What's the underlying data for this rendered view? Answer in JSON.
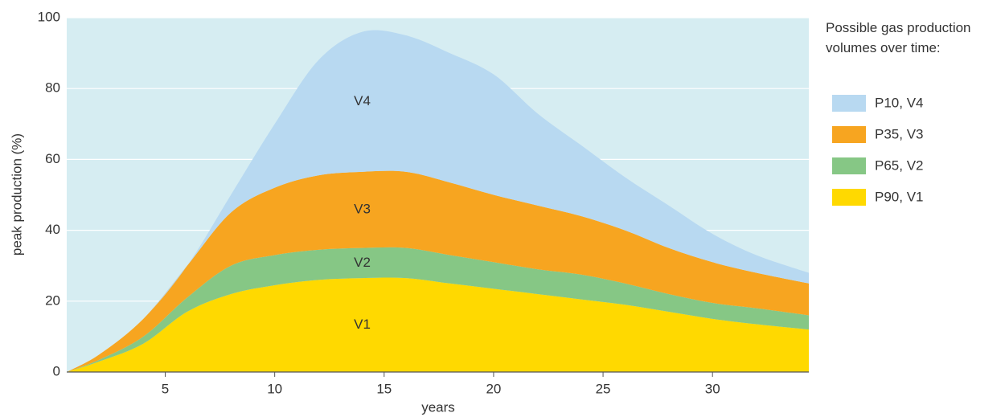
{
  "chart_data": {
    "type": "stacked_area",
    "xlabel": "years",
    "ylabel": "peak production (%)",
    "legend_title": "Possible gas production volumes over time:",
    "x": [
      0.5,
      2,
      4,
      6,
      8,
      10,
      12,
      14,
      16,
      18,
      20,
      22,
      24,
      26,
      28,
      30,
      32,
      34.4
    ],
    "series": [
      {
        "name": "P90, V1",
        "label": "V1",
        "color": "#ffd900",
        "values": [
          0,
          3,
          8,
          17,
          22,
          24.5,
          26,
          26.5,
          26.5,
          25,
          23.5,
          22,
          20.5,
          19,
          17,
          15,
          13.5,
          12
        ]
      },
      {
        "name": "P65, V2",
        "label": "V2",
        "color": "#86c785",
        "values": [
          0,
          0.5,
          2,
          4,
          8,
          8.5,
          8.5,
          8.5,
          8.5,
          8,
          7.5,
          7,
          7,
          6,
          5,
          4.5,
          4.5,
          4
        ]
      },
      {
        "name": "P35, V3",
        "label": "V3",
        "color": "#f7a520",
        "values": [
          0,
          1.5,
          5,
          9,
          15,
          19,
          21,
          21.5,
          21.5,
          20.5,
          19,
          18,
          16.5,
          15,
          13,
          11.5,
          10,
          9
        ]
      },
      {
        "name": "P10, V4",
        "label": "V4",
        "color": "#b8d9f1",
        "values": [
          0,
          0,
          0,
          0,
          5,
          18,
          32.5,
          39.5,
          38.5,
          36.5,
          34,
          26,
          20,
          15,
          12,
          8,
          5,
          3
        ]
      }
    ],
    "xlim": [
      0.5,
      34.4
    ],
    "ylim": [
      0,
      100
    ],
    "xticks": [
      5,
      10,
      15,
      20,
      25,
      30
    ],
    "yticks": [
      0,
      20,
      40,
      60,
      80,
      100
    ],
    "grid": true,
    "background": "#d6edf2"
  }
}
